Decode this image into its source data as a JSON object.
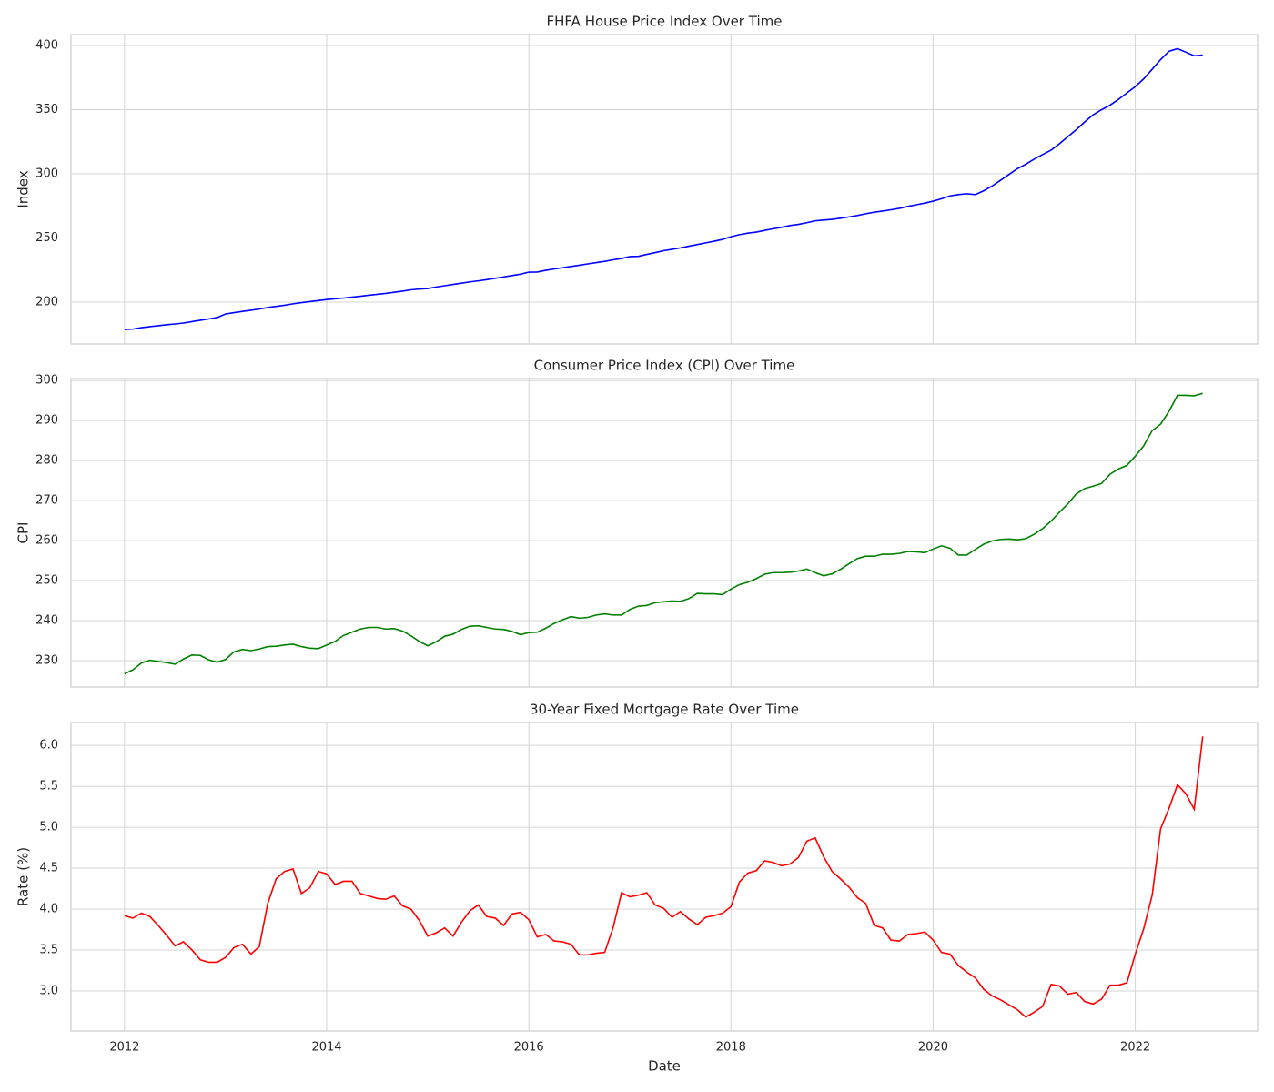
{
  "chart_data": [
    {
      "type": "line",
      "title": "FHFA House Price Index Over Time",
      "ylabel": "Index",
      "color": "#0000ff",
      "grid": true,
      "x": [
        2012,
        2012.083,
        2012.167,
        2012.25,
        2012.333,
        2012.417,
        2012.5,
        2012.583,
        2012.667,
        2012.75,
        2012.833,
        2012.917,
        2013,
        2013.083,
        2013.167,
        2013.25,
        2013.333,
        2013.417,
        2013.5,
        2013.583,
        2013.667,
        2013.75,
        2013.833,
        2013.917,
        2014,
        2014.083,
        2014.167,
        2014.25,
        2014.333,
        2014.417,
        2014.5,
        2014.583,
        2014.667,
        2014.75,
        2014.833,
        2014.917,
        2015,
        2015.083,
        2015.167,
        2015.25,
        2015.333,
        2015.417,
        2015.5,
        2015.583,
        2015.667,
        2015.75,
        2015.833,
        2015.917,
        2016,
        2016.083,
        2016.167,
        2016.25,
        2016.333,
        2016.417,
        2016.5,
        2016.583,
        2016.667,
        2016.75,
        2016.833,
        2016.917,
        2017,
        2017.083,
        2017.167,
        2017.25,
        2017.333,
        2017.417,
        2017.5,
        2017.583,
        2017.667,
        2017.75,
        2017.833,
        2017.917,
        2018,
        2018.083,
        2018.167,
        2018.25,
        2018.333,
        2018.417,
        2018.5,
        2018.583,
        2018.667,
        2018.75,
        2018.833,
        2018.917,
        2019,
        2019.083,
        2019.167,
        2019.25,
        2019.333,
        2019.417,
        2019.5,
        2019.583,
        2019.667,
        2019.75,
        2019.833,
        2019.917,
        2020,
        2020.083,
        2020.167,
        2020.25,
        2020.333,
        2020.417,
        2020.5,
        2020.583,
        2020.667,
        2020.75,
        2020.833,
        2020.917,
        2021,
        2021.083,
        2021.167,
        2021.25,
        2021.333,
        2021.417,
        2021.5,
        2021.583,
        2021.667,
        2021.75,
        2021.833,
        2021.917,
        2022,
        2022.083,
        2022.167,
        2022.25,
        2022.333,
        2022.417,
        2022.5,
        2022.583,
        2022.667
      ],
      "values": [
        178.7,
        179.0,
        180.1,
        180.9,
        181.6,
        182.4,
        183.0,
        183.7,
        184.8,
        185.9,
        186.9,
        188.0,
        190.8,
        191.8,
        192.8,
        193.7,
        194.6,
        195.8,
        196.7,
        197.6,
        198.7,
        199.6,
        200.4,
        201.2,
        202.0,
        202.6,
        203.2,
        203.9,
        204.6,
        205.4,
        206.1,
        206.8,
        207.7,
        208.6,
        209.6,
        210.2,
        210.6,
        211.8,
        212.8,
        213.8,
        214.8,
        215.8,
        216.6,
        217.5,
        218.6,
        219.6,
        220.7,
        221.8,
        223.4,
        223.5,
        224.8,
        225.8,
        226.8,
        227.8,
        228.8,
        229.8,
        230.8,
        231.8,
        233.0,
        234.0,
        235.5,
        235.7,
        237.2,
        238.6,
        240.1,
        241.2,
        242.3,
        243.6,
        244.9,
        246.2,
        247.5,
        248.9,
        251.0,
        252.6,
        253.8,
        254.6,
        255.9,
        257.2,
        258.3,
        259.7,
        260.6,
        261.9,
        263.4,
        264.0,
        264.5,
        265.4,
        266.4,
        267.5,
        268.9,
        270.1,
        271.0,
        272.0,
        273.1,
        274.6,
        275.9,
        277.2,
        278.7,
        280.6,
        282.8,
        283.8,
        284.5,
        283.8,
        286.8,
        290.5,
        295.0,
        299.5,
        304.0,
        307.5,
        311.5,
        315.0,
        318.5,
        323.5,
        329.0,
        334.5,
        340.5,
        346.0,
        350.0,
        353.5,
        358.0,
        363.0,
        368.0,
        374.0,
        381.5,
        389.0,
        395.5,
        397.5,
        394.8,
        392.0,
        392.5
      ],
      "xlim": [
        2011.47,
        2023.21
      ],
      "xticks": [
        2012,
        2014,
        2016,
        2018,
        2020,
        2022
      ],
      "ylim": [
        167.4,
        408.5
      ],
      "yticks": [
        200,
        250,
        300,
        350,
        400
      ]
    },
    {
      "type": "line",
      "title": "Consumer Price Index (CPI) Over Time",
      "ylabel": "CPI",
      "color": "#008000",
      "grid": true,
      "x": [
        2012,
        2012.083,
        2012.167,
        2012.25,
        2012.333,
        2012.417,
        2012.5,
        2012.583,
        2012.667,
        2012.75,
        2012.833,
        2012.917,
        2013,
        2013.083,
        2013.167,
        2013.25,
        2013.333,
        2013.417,
        2013.5,
        2013.583,
        2013.667,
        2013.75,
        2013.833,
        2013.917,
        2014,
        2014.083,
        2014.167,
        2014.25,
        2014.333,
        2014.417,
        2014.5,
        2014.583,
        2014.667,
        2014.75,
        2014.833,
        2014.917,
        2015,
        2015.083,
        2015.167,
        2015.25,
        2015.333,
        2015.417,
        2015.5,
        2015.583,
        2015.667,
        2015.75,
        2015.833,
        2015.917,
        2016,
        2016.083,
        2016.167,
        2016.25,
        2016.333,
        2016.417,
        2016.5,
        2016.583,
        2016.667,
        2016.75,
        2016.833,
        2016.917,
        2017,
        2017.083,
        2017.167,
        2017.25,
        2017.333,
        2017.417,
        2017.5,
        2017.583,
        2017.667,
        2017.75,
        2017.833,
        2017.917,
        2018,
        2018.083,
        2018.167,
        2018.25,
        2018.333,
        2018.417,
        2018.5,
        2018.583,
        2018.667,
        2018.75,
        2018.833,
        2018.917,
        2019,
        2019.083,
        2019.167,
        2019.25,
        2019.333,
        2019.417,
        2019.5,
        2019.583,
        2019.667,
        2019.75,
        2019.833,
        2019.917,
        2020,
        2020.083,
        2020.167,
        2020.25,
        2020.333,
        2020.417,
        2020.5,
        2020.583,
        2020.667,
        2020.75,
        2020.833,
        2020.917,
        2021,
        2021.083,
        2021.167,
        2021.25,
        2021.333,
        2021.417,
        2021.5,
        2021.583,
        2021.667,
        2021.75,
        2021.833,
        2021.917,
        2022,
        2022.083,
        2022.167,
        2022.25,
        2022.333,
        2022.417,
        2022.5,
        2022.583,
        2022.667
      ],
      "values": [
        226.7,
        227.7,
        229.4,
        230.1,
        229.8,
        229.5,
        229.1,
        230.4,
        231.4,
        231.3,
        230.2,
        229.6,
        230.3,
        232.2,
        232.8,
        232.5,
        232.9,
        233.5,
        233.6,
        233.9,
        234.1,
        233.5,
        233.1,
        233.0,
        233.9,
        234.8,
        236.3,
        237.1,
        237.9,
        238.3,
        238.3,
        237.9,
        238.0,
        237.4,
        236.2,
        234.8,
        233.7,
        234.7,
        236.1,
        236.6,
        237.8,
        238.6,
        238.7,
        238.3,
        237.9,
        237.8,
        237.3,
        236.5,
        237.0,
        237.1,
        238.1,
        239.3,
        240.2,
        241.0,
        240.6,
        240.8,
        241.4,
        241.7,
        241.4,
        241.4,
        242.8,
        243.6,
        243.8,
        244.5,
        244.7,
        244.9,
        244.8,
        245.5,
        246.8,
        246.7,
        246.7,
        246.5,
        247.9,
        249.0,
        249.6,
        250.5,
        251.6,
        252.0,
        252.0,
        252.1,
        252.4,
        252.9,
        252.0,
        251.2,
        251.7,
        252.8,
        254.2,
        255.5,
        256.1,
        256.1,
        256.6,
        256.6,
        256.8,
        257.3,
        257.2,
        257.0,
        257.9,
        258.7,
        258.1,
        256.4,
        256.4,
        257.8,
        259.1,
        259.9,
        260.3,
        260.4,
        260.2,
        260.5,
        261.6,
        263.0,
        264.9,
        267.1,
        269.2,
        271.7,
        273.0,
        273.6,
        274.3,
        276.6,
        277.9,
        278.8,
        281.1,
        283.7,
        287.5,
        289.1,
        292.3,
        296.3,
        296.3,
        296.2,
        296.8
      ],
      "xlim": [
        2011.47,
        2023.21
      ],
      "xticks": [
        2012,
        2014,
        2016,
        2018,
        2020,
        2022
      ],
      "ylim": [
        223.4,
        300.5
      ],
      "yticks": [
        230,
        240,
        250,
        260,
        270,
        280,
        290,
        300
      ]
    },
    {
      "type": "line",
      "title": "30-Year Fixed Mortgage Rate Over Time",
      "ylabel": "Rate (%)",
      "xlabel": "Date",
      "color": "#ff0000",
      "grid": true,
      "x": [
        2012,
        2012.083,
        2012.167,
        2012.25,
        2012.333,
        2012.417,
        2012.5,
        2012.583,
        2012.667,
        2012.75,
        2012.833,
        2012.917,
        2013,
        2013.083,
        2013.167,
        2013.25,
        2013.333,
        2013.417,
        2013.5,
        2013.583,
        2013.667,
        2013.75,
        2013.833,
        2013.917,
        2014,
        2014.083,
        2014.167,
        2014.25,
        2014.333,
        2014.417,
        2014.5,
        2014.583,
        2014.667,
        2014.75,
        2014.833,
        2014.917,
        2015,
        2015.083,
        2015.167,
        2015.25,
        2015.333,
        2015.417,
        2015.5,
        2015.583,
        2015.667,
        2015.75,
        2015.833,
        2015.917,
        2016,
        2016.083,
        2016.167,
        2016.25,
        2016.333,
        2016.417,
        2016.5,
        2016.583,
        2016.667,
        2016.75,
        2016.833,
        2016.917,
        2017,
        2017.083,
        2017.167,
        2017.25,
        2017.333,
        2017.417,
        2017.5,
        2017.583,
        2017.667,
        2017.75,
        2017.833,
        2017.917,
        2018,
        2018.083,
        2018.167,
        2018.25,
        2018.333,
        2018.417,
        2018.5,
        2018.583,
        2018.667,
        2018.75,
        2018.833,
        2018.917,
        2019,
        2019.083,
        2019.167,
        2019.25,
        2019.333,
        2019.417,
        2019.5,
        2019.583,
        2019.667,
        2019.75,
        2019.833,
        2019.917,
        2020,
        2020.083,
        2020.167,
        2020.25,
        2020.333,
        2020.417,
        2020.5,
        2020.583,
        2020.667,
        2020.75,
        2020.833,
        2020.917,
        2021,
        2021.083,
        2021.167,
        2021.25,
        2021.333,
        2021.417,
        2021.5,
        2021.583,
        2021.667,
        2021.75,
        2021.833,
        2021.917,
        2022,
        2022.083,
        2022.167,
        2022.25,
        2022.333,
        2022.417,
        2022.5,
        2022.583,
        2022.667
      ],
      "values": [
        3.92,
        3.89,
        3.95,
        3.91,
        3.8,
        3.68,
        3.55,
        3.6,
        3.5,
        3.38,
        3.35,
        3.35,
        3.41,
        3.53,
        3.57,
        3.45,
        3.54,
        4.07,
        4.37,
        4.46,
        4.49,
        4.19,
        4.26,
        4.46,
        4.43,
        4.3,
        4.34,
        4.34,
        4.19,
        4.16,
        4.13,
        4.12,
        4.16,
        4.04,
        4.0,
        3.86,
        3.67,
        3.71,
        3.77,
        3.67,
        3.84,
        3.98,
        4.05,
        3.91,
        3.89,
        3.8,
        3.94,
        3.96,
        3.87,
        3.66,
        3.69,
        3.61,
        3.6,
        3.57,
        3.44,
        3.44,
        3.46,
        3.47,
        3.77,
        4.2,
        4.15,
        4.17,
        4.2,
        4.05,
        4.01,
        3.9,
        3.97,
        3.88,
        3.81,
        3.9,
        3.92,
        3.95,
        4.03,
        4.33,
        4.44,
        4.47,
        4.59,
        4.57,
        4.53,
        4.55,
        4.63,
        4.83,
        4.87,
        4.64,
        4.46,
        4.37,
        4.27,
        4.14,
        4.07,
        3.8,
        3.77,
        3.62,
        3.61,
        3.69,
        3.7,
        3.72,
        3.62,
        3.47,
        3.45,
        3.31,
        3.23,
        3.16,
        3.02,
        2.94,
        2.89,
        2.83,
        2.77,
        2.68,
        2.74,
        2.81,
        3.08,
        3.06,
        2.96,
        2.98,
        2.87,
        2.84,
        2.9,
        3.07,
        3.07,
        3.1,
        3.45,
        3.76,
        4.17,
        4.98,
        5.23,
        5.52,
        5.41,
        5.22,
        6.11
      ],
      "xlim": [
        2011.47,
        2023.21
      ],
      "xticks": [
        2012,
        2014,
        2016,
        2018,
        2020,
        2022
      ],
      "ylim": [
        2.51,
        6.28
      ],
      "yticks": [
        {
          "value": 3,
          "label": "3.0"
        },
        3.5,
        {
          "value": 4,
          "label": "4.0"
        },
        4.5,
        {
          "value": 5,
          "label": "5.0"
        },
        5.5,
        {
          "value": 6,
          "label": "6.0"
        }
      ]
    }
  ]
}
